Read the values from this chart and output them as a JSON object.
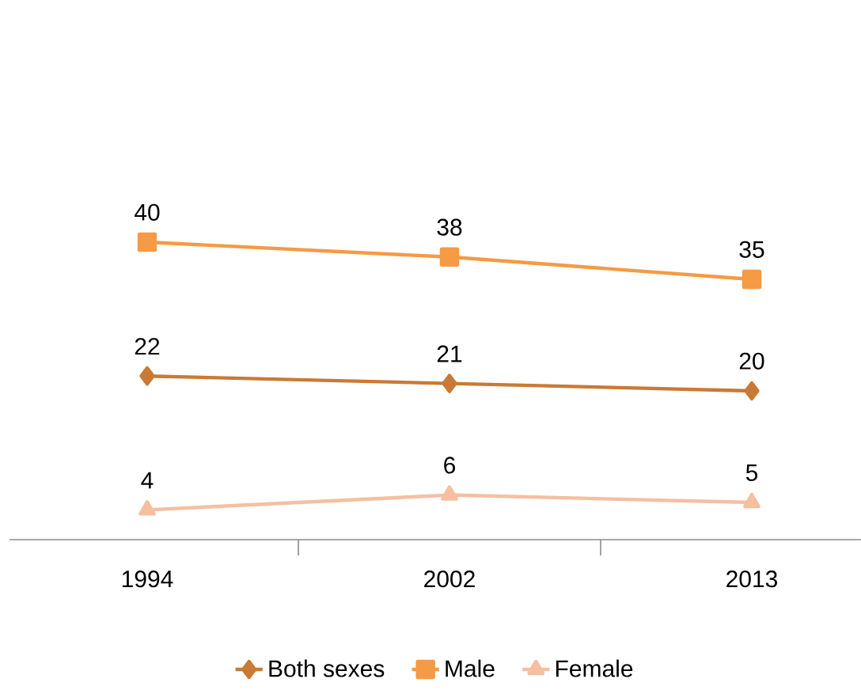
{
  "chart_data": {
    "type": "line",
    "categories": [
      "1994",
      "2002",
      "2013"
    ],
    "series": [
      {
        "name": "Both sexes",
        "color": "#c97a35",
        "marker": "diamond",
        "values": [
          22,
          21,
          20
        ]
      },
      {
        "name": "Male",
        "color": "#f59a45",
        "marker": "square",
        "values": [
          40,
          38,
          35
        ]
      },
      {
        "name": "Female",
        "color": "#f5bfa0",
        "marker": "triangle",
        "values": [
          4,
          6,
          5
        ]
      }
    ],
    "data_labels": true,
    "legend": "bottom"
  }
}
